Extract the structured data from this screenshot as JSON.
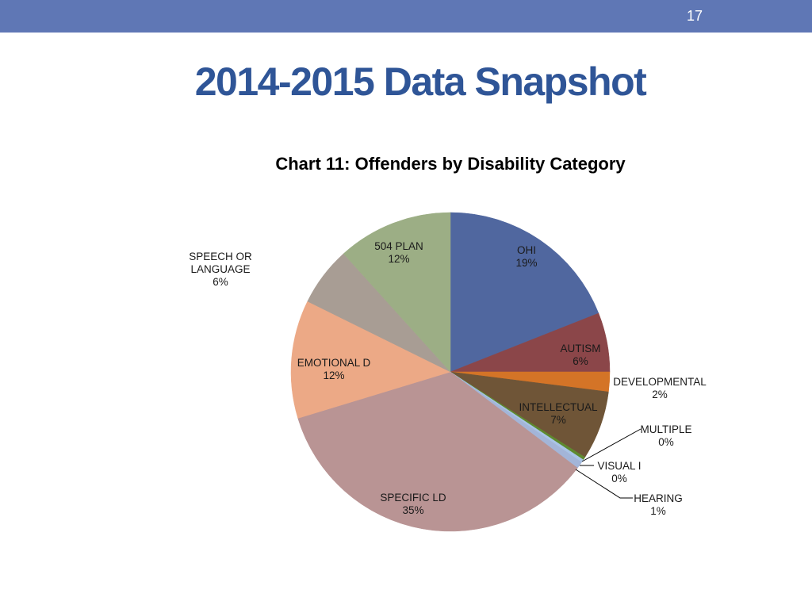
{
  "slide": {
    "page_number": "17",
    "title": "2014-2015 Data Snapshot"
  },
  "colors": {
    "header_bar": "#5f77b5",
    "title": "#2f5597"
  },
  "chart_data": {
    "type": "pie",
    "title": "Chart 11: Offenders by Disability Category",
    "start_angle_deg": 0,
    "direction": "clockwise",
    "slices": [
      {
        "label": "OHI",
        "display": "19%",
        "value": 19.0,
        "color": "#50679f"
      },
      {
        "label": "AUTISM",
        "display": "6%",
        "value": 6.0,
        "color": "#8b4649"
      },
      {
        "label": "DEVELOPMENTAL",
        "display": "2%",
        "value": 2.0,
        "color": "#d47427"
      },
      {
        "label": "INTELLECTUAL",
        "display": "7%",
        "value": 7.0,
        "color": "#6f5537"
      },
      {
        "label": "MULTIPLE",
        "display": "0%",
        "value": 0.3,
        "color": "#5e8a2e"
      },
      {
        "label": "VISUAL I",
        "display": "0%",
        "value": 0.3,
        "color": "#a9c4e6"
      },
      {
        "label": "HEARING",
        "display": "1%",
        "value": 0.7,
        "color": "#a3b5d8"
      },
      {
        "label": "SPECIFIC LD",
        "display": "35%",
        "value": 35.0,
        "color": "#b99494"
      },
      {
        "label": "EMOTIONAL D",
        "display": "12%",
        "value": 12.0,
        "color": "#eca986"
      },
      {
        "label": "SPEECH OR LANGUAGE",
        "display": "6%",
        "value": 6.0,
        "color": "#a89d94"
      },
      {
        "label": "504 PLAN",
        "display": "12%",
        "value": 11.7,
        "color": "#9cae85"
      }
    ]
  }
}
